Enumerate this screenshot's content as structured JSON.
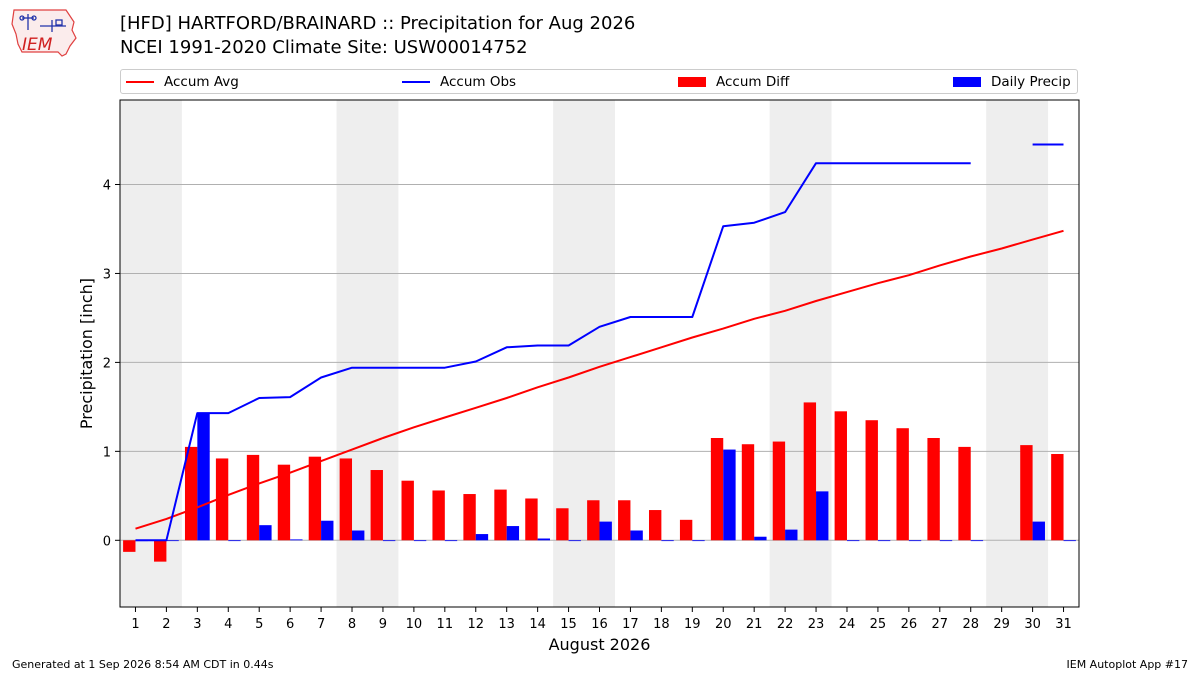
{
  "header": {
    "line1": "[HFD] HARTFORD/BRAINARD :: Precipitation for Aug 2026",
    "line2": "NCEI 1991-2020 Climate Site: USW00014752",
    "logo_text": "IEM"
  },
  "legend": [
    {
      "label": "Accum Avg",
      "kind": "line",
      "color": "#ff0000"
    },
    {
      "label": "Accum Obs",
      "kind": "line",
      "color": "#0000ff"
    },
    {
      "label": "Accum Diff",
      "kind": "bar",
      "color": "#ff0000"
    },
    {
      "label": "Daily Precip",
      "kind": "bar",
      "color": "#0000ff"
    }
  ],
  "footer": {
    "left": "Generated at 1 Sep 2026 8:54 AM CDT in 0.44s",
    "right": "IEM Autoplot App #17"
  },
  "chart_data": {
    "type": "bar",
    "xlabel": "August 2026",
    "ylabel": "Precipitation [inch]",
    "xlim": [
      0.5,
      31.5
    ],
    "ylim": [
      -0.75,
      4.95
    ],
    "yticks": [
      0,
      1,
      2,
      3,
      4
    ],
    "xticks": [
      1,
      2,
      3,
      4,
      5,
      6,
      7,
      8,
      9,
      10,
      11,
      12,
      13,
      14,
      15,
      16,
      17,
      18,
      19,
      20,
      21,
      22,
      23,
      24,
      25,
      26,
      27,
      28,
      29,
      30,
      31
    ],
    "grid": "y",
    "weekend_shading": [
      [
        0.5,
        2.5
      ],
      [
        7.5,
        9.5
      ],
      [
        14.5,
        16.5
      ],
      [
        21.5,
        23.5
      ],
      [
        28.5,
        30.5
      ]
    ],
    "weekend_color": "#eeeeee",
    "series": [
      {
        "name": "Accum Avg",
        "kind": "line",
        "color": "#ff0000",
        "x": [
          1,
          2,
          3,
          4,
          5,
          6,
          7,
          8,
          9,
          10,
          11,
          12,
          13,
          14,
          15,
          16,
          17,
          18,
          19,
          20,
          21,
          22,
          23,
          24,
          25,
          26,
          27,
          28,
          29,
          30,
          31
        ],
        "values": [
          0.13,
          0.24,
          0.37,
          0.51,
          0.64,
          0.76,
          0.89,
          1.02,
          1.15,
          1.27,
          1.38,
          1.49,
          1.6,
          1.72,
          1.83,
          1.95,
          2.06,
          2.17,
          2.28,
          2.38,
          2.49,
          2.58,
          2.69,
          2.79,
          2.89,
          2.98,
          3.09,
          3.19,
          3.28,
          3.38,
          3.48
        ]
      },
      {
        "name": "Accum Obs",
        "kind": "line",
        "color": "#0000ff",
        "x": [
          1,
          2,
          3,
          4,
          5,
          6,
          7,
          8,
          9,
          10,
          11,
          12,
          13,
          14,
          15,
          16,
          17,
          18,
          19,
          20,
          21,
          22,
          23,
          24,
          25,
          26,
          27,
          28,
          29,
          30,
          31
        ],
        "values": [
          0.0,
          0.0,
          1.43,
          1.43,
          1.6,
          1.61,
          1.83,
          1.94,
          1.94,
          1.94,
          1.94,
          2.01,
          2.17,
          2.19,
          2.19,
          2.4,
          2.51,
          2.51,
          2.51,
          3.53,
          3.57,
          3.69,
          4.24,
          4.24,
          4.24,
          4.24,
          4.24,
          4.24,
          null,
          4.45,
          4.45
        ]
      },
      {
        "name": "Accum Diff",
        "kind": "bar",
        "color": "#ff0000",
        "x": [
          1,
          2,
          3,
          4,
          5,
          6,
          7,
          8,
          9,
          10,
          11,
          12,
          13,
          14,
          15,
          16,
          17,
          18,
          19,
          20,
          21,
          22,
          23,
          24,
          25,
          26,
          27,
          28,
          29,
          30,
          31
        ],
        "values": [
          -0.13,
          -0.24,
          1.05,
          0.92,
          0.96,
          0.85,
          0.94,
          0.92,
          0.79,
          0.67,
          0.56,
          0.52,
          0.57,
          0.47,
          0.36,
          0.45,
          0.45,
          0.34,
          0.23,
          1.15,
          1.08,
          1.11,
          1.55,
          1.45,
          1.35,
          1.26,
          1.15,
          1.05,
          null,
          1.07,
          0.97
        ]
      },
      {
        "name": "Daily Precip",
        "kind": "bar",
        "color": "#0000ff",
        "x": [
          1,
          2,
          3,
          4,
          5,
          6,
          7,
          8,
          9,
          10,
          11,
          12,
          13,
          14,
          15,
          16,
          17,
          18,
          19,
          20,
          21,
          22,
          23,
          24,
          25,
          26,
          27,
          28,
          29,
          30,
          31
        ],
        "values": [
          0,
          0,
          1.43,
          0,
          0.17,
          0.01,
          0.22,
          0.11,
          0,
          0,
          0,
          0.07,
          0.16,
          0.02,
          0,
          0.21,
          0.11,
          0,
          0,
          1.02,
          0.04,
          0.12,
          0.55,
          0,
          0,
          0,
          0,
          0,
          null,
          0.21,
          0
        ]
      }
    ]
  }
}
